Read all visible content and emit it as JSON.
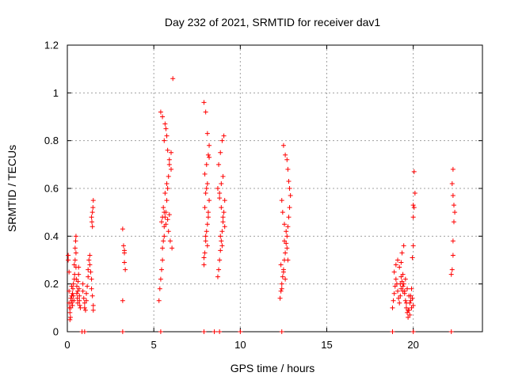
{
  "chart_data": {
    "type": "scatter",
    "title": "Day 232 of 2021, SRMTID for receiver dav1",
    "xlabel": "GPS time / hours",
    "ylabel": "SRMTID / TECUs",
    "xlim": [
      0,
      24
    ],
    "ylim": [
      0,
      1.2
    ],
    "xticks": [
      0,
      5,
      10,
      15,
      20
    ],
    "yticks": [
      0,
      0.2,
      0.4,
      0.6,
      0.8,
      1,
      1.2
    ],
    "ytick_labels": [
      "0",
      "0.2",
      "0.4",
      "0.6",
      "0.8",
      "1",
      "1.2"
    ],
    "grid": true,
    "marker": "+",
    "color": "#ff0000",
    "series": [
      {
        "name": "dav1",
        "x": [
          0.05,
          0.05,
          0.1,
          0.1,
          0.1,
          0.12,
          0.15,
          0.15,
          0.18,
          0.2,
          0.2,
          0.22,
          0.25,
          0.25,
          0.28,
          0.3,
          0.3,
          0.32,
          0.35,
          0.35,
          0.38,
          0.4,
          0.4,
          0.42,
          0.45,
          0.45,
          0.48,
          0.5,
          0.5,
          0.5,
          0.52,
          0.55,
          0.55,
          0.58,
          0.6,
          0.6,
          0.62,
          0.65,
          0.65,
          0.68,
          0.7,
          0.7,
          0.72,
          0.75,
          0.9,
          0.9,
          0.95,
          1.0,
          1.0,
          1.05,
          1.1,
          1.1,
          1.15,
          1.2,
          1.2,
          1.25,
          1.3,
          1.3,
          1.35,
          1.4,
          1.4,
          1.45,
          1.5,
          1.5,
          1.5,
          1.45,
          1.4,
          1.42,
          1.48,
          1.45,
          3.2,
          3.25,
          3.3,
          3.3,
          3.35,
          3.3,
          3.2,
          5.3,
          5.35,
          5.4,
          5.45,
          5.5,
          5.5,
          5.55,
          5.6,
          5.6,
          5.65,
          5.7,
          5.75,
          5.8,
          5.85,
          5.9,
          6.0,
          5.6,
          5.7,
          5.5,
          5.4,
          5.8,
          5.9,
          6.0,
          5.75,
          5.65,
          5.55,
          5.45,
          5.85,
          5.95,
          6.05,
          5.5,
          5.6,
          5.7,
          5.8,
          5.9,
          6.1,
          5.65,
          5.75,
          7.9,
          7.95,
          8.0,
          8.05,
          8.1,
          8.15,
          8.2,
          8.0,
          8.1,
          7.95,
          8.05,
          8.15,
          7.9,
          8.0,
          8.1,
          8.2,
          8.05,
          7.95,
          8.15,
          8.0,
          8.1,
          7.9,
          8.2,
          8.7,
          8.75,
          8.8,
          8.85,
          8.9,
          8.95,
          9.0,
          9.05,
          9.1,
          8.8,
          8.9,
          9.0,
          8.75,
          8.85,
          8.95,
          9.05,
          8.7,
          8.8,
          8.9,
          9.0,
          9.1,
          8.85,
          8.95,
          12.3,
          12.35,
          12.4,
          12.45,
          12.5,
          12.55,
          12.6,
          12.65,
          12.7,
          12.75,
          12.8,
          12.85,
          12.9,
          12.85,
          12.8,
          12.75,
          12.7,
          12.6,
          12.5,
          12.4,
          12.45,
          12.55,
          12.65,
          12.7,
          12.75,
          12.5,
          12.6,
          12.4,
          12.35,
          12.55,
          18.8,
          18.85,
          18.9,
          18.95,
          19.0,
          19.05,
          19.1,
          19.15,
          19.2,
          19.25,
          19.3,
          19.35,
          19.4,
          19.45,
          19.5,
          19.55,
          19.6,
          19.65,
          19.7,
          19.75,
          19.8,
          19.85,
          19.9,
          19.95,
          20.0,
          18.9,
          19.0,
          19.1,
          19.2,
          19.3,
          19.4,
          19.5,
          19.6,
          19.7,
          19.8,
          19.9,
          19.35,
          19.45,
          19.55,
          19.65,
          19.75,
          19.85,
          19.3,
          19.25,
          19.4,
          19.95,
          20.0,
          20.0,
          20.05,
          20.1,
          20.05,
          20.0,
          22.2,
          22.25,
          22.3,
          22.3,
          22.35,
          22.4,
          22.35,
          22.3,
          22.25,
          22.3,
          0.85,
          1.0,
          3.2,
          5.4,
          7.9,
          8.5,
          8.8,
          10.0,
          12.4,
          18.8,
          20.0,
          22.2
        ],
        "y": [
          0.32,
          0.3,
          0.25,
          0.17,
          0.12,
          0.1,
          0.08,
          0.05,
          0.06,
          0.1,
          0.14,
          0.12,
          0.15,
          0.19,
          0.13,
          0.16,
          0.11,
          0.18,
          0.2,
          0.15,
          0.13,
          0.22,
          0.28,
          0.24,
          0.3,
          0.35,
          0.38,
          0.4,
          0.33,
          0.27,
          0.22,
          0.19,
          0.16,
          0.14,
          0.12,
          0.17,
          0.21,
          0.24,
          0.27,
          0.18,
          0.15,
          0.13,
          0.11,
          0.1,
          0.2,
          0.17,
          0.14,
          0.12,
          0.1,
          0.09,
          0.13,
          0.16,
          0.19,
          0.23,
          0.26,
          0.3,
          0.32,
          0.28,
          0.25,
          0.22,
          0.18,
          0.15,
          0.11,
          0.09,
          0.55,
          0.5,
          0.48,
          0.46,
          0.52,
          0.44,
          0.43,
          0.36,
          0.33,
          0.29,
          0.26,
          0.34,
          0.13,
          0.13,
          0.18,
          0.22,
          0.26,
          0.3,
          0.35,
          0.38,
          0.4,
          0.44,
          0.48,
          0.5,
          0.55,
          0.6,
          0.65,
          0.7,
          0.75,
          0.8,
          0.85,
          0.9,
          0.92,
          0.76,
          0.72,
          0.68,
          0.62,
          0.58,
          0.52,
          0.46,
          0.42,
          0.38,
          0.35,
          0.48,
          0.5,
          0.45,
          0.47,
          0.49,
          1.06,
          0.87,
          0.82,
          0.28,
          0.33,
          0.38,
          0.42,
          0.45,
          0.5,
          0.55,
          0.58,
          0.62,
          0.66,
          0.7,
          0.74,
          0.96,
          0.92,
          0.83,
          0.78,
          0.6,
          0.52,
          0.48,
          0.4,
          0.36,
          0.31,
          0.73,
          0.23,
          0.26,
          0.3,
          0.34,
          0.38,
          0.42,
          0.46,
          0.5,
          0.55,
          0.58,
          0.62,
          0.65,
          0.7,
          0.75,
          0.8,
          0.82,
          0.6,
          0.56,
          0.52,
          0.48,
          0.44,
          0.4,
          0.36,
          0.14,
          0.17,
          0.2,
          0.23,
          0.26,
          0.3,
          0.33,
          0.37,
          0.4,
          0.44,
          0.48,
          0.52,
          0.57,
          0.6,
          0.63,
          0.68,
          0.72,
          0.74,
          0.78,
          0.55,
          0.5,
          0.45,
          0.42,
          0.35,
          0.3,
          0.25,
          0.22,
          0.18,
          0.28,
          0.38,
          0.1,
          0.13,
          0.16,
          0.19,
          0.22,
          0.2,
          0.17,
          0.14,
          0.12,
          0.15,
          0.18,
          0.21,
          0.24,
          0.2,
          0.17,
          0.13,
          0.1,
          0.08,
          0.06,
          0.09,
          0.12,
          0.15,
          0.18,
          0.14,
          0.11,
          0.25,
          0.28,
          0.3,
          0.27,
          0.23,
          0.19,
          0.16,
          0.12,
          0.09,
          0.07,
          0.1,
          0.33,
          0.36,
          0.22,
          0.18,
          0.15,
          0.13,
          0.29,
          0.2,
          0.17,
          0.31,
          0.36,
          0.48,
          0.52,
          0.58,
          0.67,
          0.53,
          0.24,
          0.26,
          0.32,
          0.38,
          0.46,
          0.5,
          0.53,
          0.57,
          0.62,
          0.68,
          0,
          0,
          0,
          0,
          0,
          0,
          0,
          0,
          0,
          0,
          0,
          0
        ]
      }
    ]
  }
}
